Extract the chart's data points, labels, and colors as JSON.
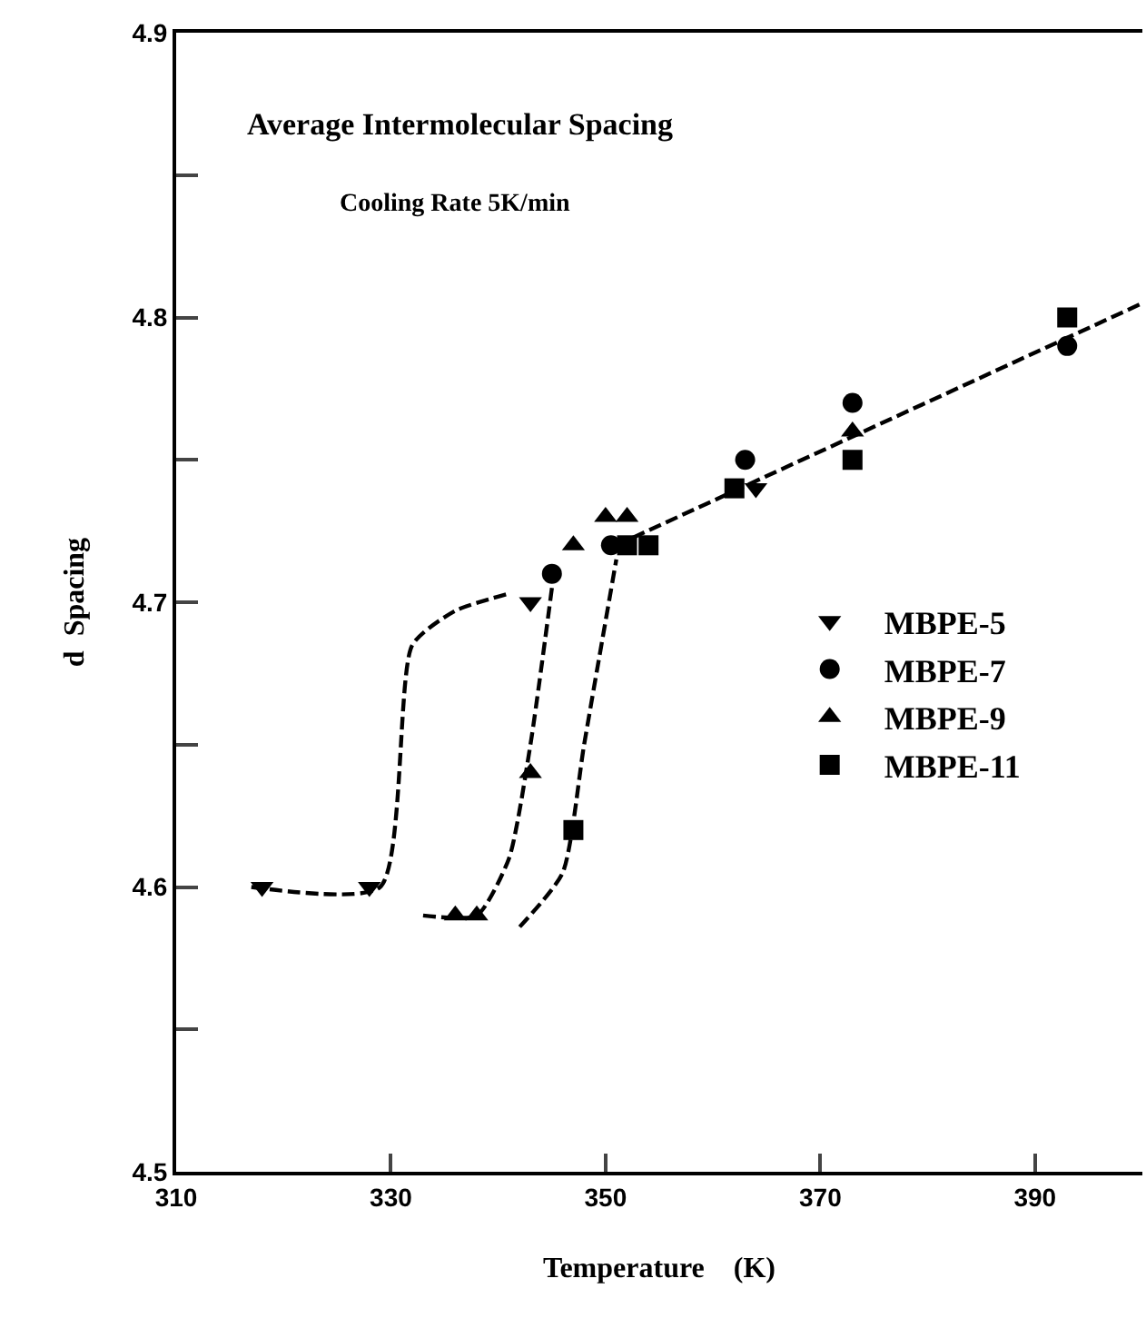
{
  "chart_data": {
    "type": "scatter",
    "title": "Average Intermolecular Spacing",
    "subtitle": "Cooling Rate 5K/min",
    "xlabel": "Temperature    (K)",
    "ylabel": "d  Spacing",
    "xlim": [
      310,
      400
    ],
    "xticks": [
      310,
      330,
      350,
      370,
      390
    ],
    "ylim": [
      4.5,
      4.9
    ],
    "yticks": [
      4.5,
      {
        "value": 4.55,
        "label": null
      },
      4.6,
      {
        "value": 4.65,
        "label": null
      },
      4.7,
      {
        "value": 4.75,
        "label": null
      },
      4.8,
      {
        "value": 4.85,
        "label": null
      },
      4.9
    ],
    "grid": false,
    "legend": "right",
    "line_style": "dashed",
    "series": [
      {
        "name": "MBPE-5",
        "color": "#000000",
        "marker": "triangle-down",
        "x": [
          318,
          328,
          343,
          364
        ],
        "values": [
          4.6,
          4.6,
          4.7,
          4.74
        ]
      },
      {
        "name": "MBPE-7",
        "color": "#000000",
        "marker": "circle",
        "x": [
          345,
          350.5,
          363,
          373,
          393
        ],
        "values": [
          4.71,
          4.72,
          4.75,
          4.77,
          4.79
        ]
      },
      {
        "name": "MBPE-9",
        "color": "#000000",
        "marker": "triangle",
        "x": [
          336,
          338,
          343,
          347,
          350,
          352,
          373
        ],
        "values": [
          4.59,
          4.59,
          4.64,
          4.72,
          4.73,
          4.73,
          4.76
        ]
      },
      {
        "name": "MBPE-11",
        "color": "#000000",
        "marker": "square",
        "x": [
          347,
          352,
          354,
          362,
          373,
          393
        ],
        "values": [
          4.62,
          4.72,
          4.72,
          4.74,
          4.75,
          4.8
        ]
      },
      {
        "type": "line",
        "color": "#000000",
        "x": [
          317,
          329,
          332,
          336,
          341
        ],
        "values": [
          4.6,
          4.6,
          4.685,
          4.697,
          4.703
        ]
      },
      {
        "type": "line",
        "color": "#000000",
        "x": [
          333,
          338,
          341,
          343,
          345
        ],
        "values": [
          4.59,
          4.59,
          4.61,
          4.65,
          4.705
        ]
      },
      {
        "type": "line",
        "color": "#000000",
        "x": [
          342,
          346,
          348,
          351
        ],
        "values": [
          4.586,
          4.605,
          4.65,
          4.715
        ]
      },
      {
        "type": "line",
        "color": "#000000",
        "x": [
          351,
          400
        ],
        "values": [
          4.72,
          4.805
        ]
      }
    ]
  }
}
